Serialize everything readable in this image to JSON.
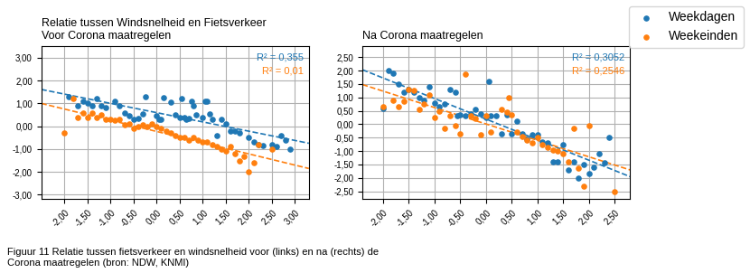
{
  "chart_data": [
    {
      "type": "scatter",
      "title": "Relatie tussen Windsnelheid en Fietsverkeer",
      "subtitle": "Voor Corona maatregelen",
      "series": [
        {
          "name": "Weekdagen",
          "x": [
            -1.9,
            -1.7,
            -1.6,
            -1.5,
            -1.4,
            -1.3,
            -1.2,
            -1.1,
            -0.9,
            -0.8,
            -0.7,
            -0.6,
            -0.5,
            -0.4,
            -0.3,
            -0.25,
            0.0,
            0.05,
            0.1,
            0.15,
            0.3,
            0.4,
            0.5,
            0.55,
            0.6,
            0.65,
            0.7,
            0.75,
            0.8,
            0.85,
            1.0,
            1.05,
            1.1,
            1.15,
            1.2,
            1.3,
            1.4,
            1.5,
            1.6,
            1.7,
            1.8,
            2.0,
            2.1,
            2.2,
            2.3,
            2.5,
            2.6,
            2.7,
            2.8,
            2.9
          ],
          "values": [
            1.3,
            0.9,
            1.1,
            1.0,
            0.9,
            1.2,
            0.9,
            0.8,
            1.1,
            0.9,
            0.6,
            0.45,
            0.3,
            0.35,
            0.55,
            1.3,
            0.45,
            0.3,
            0.3,
            1.25,
            1.05,
            0.5,
            0.4,
            1.2,
            0.4,
            0.3,
            0.35,
            1.1,
            0.9,
            0.5,
            0.4,
            1.1,
            1.1,
            0.55,
            0.3,
            -0.4,
            0.3,
            0.1,
            -0.2,
            -0.2,
            -0.3,
            -0.5,
            -0.7,
            -0.8,
            -0.85,
            -0.8,
            -0.9,
            -0.4,
            -0.6,
            -1.0
          ]
        },
        {
          "name": "Weekeinden",
          "x": [
            -2.0,
            -1.8,
            -1.7,
            -1.6,
            -1.5,
            -1.4,
            -1.3,
            -1.2,
            -1.1,
            -1.0,
            -0.9,
            -0.8,
            -0.7,
            -0.6,
            -0.5,
            -0.4,
            -0.3,
            -0.2,
            -0.1,
            0.0,
            0.1,
            0.2,
            0.3,
            0.4,
            0.5,
            0.6,
            0.7,
            0.8,
            0.9,
            1.0,
            1.1,
            1.2,
            1.3,
            1.4,
            1.5,
            1.6,
            1.7,
            1.8,
            1.9,
            2.0,
            2.1,
            2.2,
            2.5
          ],
          "values": [
            -0.3,
            1.2,
            0.4,
            0.6,
            0.4,
            0.6,
            0.4,
            0.5,
            0.3,
            0.3,
            0.25,
            0.3,
            0.05,
            0.1,
            -0.1,
            0.0,
            0.05,
            0.0,
            0.1,
            0.0,
            -0.1,
            -0.2,
            -0.3,
            -0.4,
            -0.5,
            -0.5,
            -0.6,
            -0.5,
            -0.6,
            -0.7,
            -0.7,
            -0.8,
            -0.9,
            -1.0,
            -1.1,
            -0.9,
            -1.2,
            -1.5,
            -1.3,
            -2.0,
            -1.6,
            -0.8,
            -1.0
          ]
        }
      ],
      "trend_lines": [
        {
          "series": "Weekdagen",
          "slope": -0.40664,
          "intercept": 0.5978,
          "label": "R² = 0,355"
        },
        {
          "series": "Weekeinden",
          "slope": -0.49182,
          "intercept": -0.22724,
          "label": "R² = 0,01"
        }
      ],
      "xlim": [
        -2.5,
        3.3
      ],
      "ylim": [
        -3.2,
        3.5
      ],
      "xticks": [
        {
          "value": -2.0,
          "label": "-2,00"
        },
        {
          "value": -1.5,
          "label": "-1,50"
        },
        {
          "value": -1.0,
          "label": "-1,00"
        },
        {
          "value": -0.5,
          "label": "-0,50"
        },
        {
          "value": 0.0,
          "label": "0,00"
        },
        {
          "value": 0.5,
          "label": "0,50"
        },
        {
          "value": 1.0,
          "label": "1,00"
        },
        {
          "value": 1.5,
          "label": "1,50"
        },
        {
          "value": 2.0,
          "label": "2,00"
        },
        {
          "value": 2.5,
          "label": "2,50"
        },
        {
          "value": 3.0,
          "label": "3,00"
        }
      ],
      "yticks": [
        {
          "value": -3.0,
          "label": "-3,00"
        },
        {
          "value": -2.0,
          "label": "-2,00"
        },
        {
          "value": -1.0,
          "label": "-1,00"
        },
        {
          "value": 0.0,
          "label": "0,00"
        },
        {
          "value": 1.0,
          "label": "1,00"
        },
        {
          "value": 2.0,
          "label": "2,00"
        },
        {
          "value": 3.0,
          "label": "3,00"
        }
      ],
      "grid": true
    },
    {
      "type": "scatter",
      "title": "Na Corona maatregelen",
      "series": [
        {
          "name": "Weekdagen",
          "x": [
            -2.0,
            -1.9,
            -1.8,
            -1.7,
            -1.6,
            -1.5,
            -1.4,
            -1.3,
            -1.2,
            -1.1,
            -1.0,
            -0.9,
            -0.8,
            -0.7,
            -0.6,
            -0.55,
            -0.5,
            -0.4,
            -0.3,
            -0.2,
            -0.1,
            0.0,
            0.05,
            0.1,
            0.2,
            0.3,
            0.4,
            0.5,
            0.6,
            0.7,
            0.8,
            0.9,
            1.0,
            1.1,
            1.2,
            1.3,
            1.4,
            1.5,
            1.6,
            1.7,
            1.8,
            1.9,
            2.0,
            2.1,
            2.2,
            2.3,
            2.4
          ],
          "values": [
            0.6,
            2.0,
            1.9,
            1.5,
            1.2,
            1.3,
            1.2,
            1.0,
            0.9,
            1.4,
            0.8,
            0.65,
            0.75,
            1.3,
            1.2,
            0.3,
            0.35,
            0.3,
            0.4,
            0.55,
            0.4,
            0.25,
            1.6,
            0.3,
            0.3,
            -0.35,
            0.35,
            -0.35,
            0.1,
            -0.35,
            -0.55,
            -0.4,
            -0.4,
            -0.65,
            -0.7,
            -1.4,
            -1.4,
            -0.75,
            -1.7,
            -1.4,
            -2.0,
            -1.5,
            -1.85,
            -1.6,
            -1.1,
            -1.45,
            -0.5
          ]
        },
        {
          "name": "Weekeinden",
          "x": [
            -2.0,
            -1.8,
            -1.7,
            -1.6,
            -1.5,
            -1.4,
            -1.3,
            -1.2,
            -1.1,
            -1.0,
            -0.9,
            -0.8,
            -0.7,
            -0.6,
            -0.5,
            -0.4,
            -0.3,
            -0.2,
            -0.1,
            0.0,
            0.1,
            0.3,
            0.4,
            0.45,
            0.5,
            0.6,
            0.7,
            0.8,
            0.9,
            1.0,
            1.1,
            1.2,
            1.3,
            1.4,
            1.5,
            1.6,
            1.7,
            1.8,
            1.9,
            2.0,
            2.5
          ],
          "values": [
            0.65,
            0.9,
            0.65,
            0.85,
            1.3,
            1.25,
            0.55,
            0.75,
            1.1,
            0.25,
            0.5,
            -0.15,
            0.3,
            -0.05,
            -0.35,
            1.85,
            0.3,
            0.2,
            -0.4,
            0.3,
            -0.3,
            0.55,
            0.45,
            1.0,
            0.35,
            -0.3,
            -0.45,
            -0.6,
            -0.7,
            -0.5,
            -0.75,
            -0.85,
            -0.95,
            -1.0,
            -1.1,
            -1.4,
            -0.15,
            -1.65,
            -2.3,
            -0.05,
            -2.5
          ]
        }
      ],
      "trend_lines": [
        {
          "series": "Weekdagen",
          "slope": -0.76656,
          "intercept": 0.19182,
          "label": "R² = 0,3052"
        },
        {
          "series": "Weekeinden",
          "slope": -0.6121,
          "intercept": 0.00966,
          "label": "R² = 0,2546"
        }
      ],
      "xlim": [
        -2.4,
        2.8
      ],
      "ylim": [
        -2.8,
        2.9
      ],
      "xticks": [
        {
          "value": -2.0,
          "label": "-2,00"
        },
        {
          "value": -1.5,
          "label": "-1,50"
        },
        {
          "value": -1.0,
          "label": "-1,00"
        },
        {
          "value": -0.5,
          "label": "-0,50"
        },
        {
          "value": 0.0,
          "label": "0,00"
        },
        {
          "value": 0.5,
          "label": "0,50"
        },
        {
          "value": 1.0,
          "label": "1,00"
        },
        {
          "value": 1.5,
          "label": "1,50"
        },
        {
          "value": 2.0,
          "label": "2,00"
        },
        {
          "value": 2.5,
          "label": "2,50"
        }
      ],
      "yticks": [
        {
          "value": -2.5,
          "label": "-2,50"
        },
        {
          "value": -2.0,
          "label": "-2,00"
        },
        {
          "value": -1.5,
          "label": "-1,50"
        },
        {
          "value": -1.0,
          "label": "-1,00"
        },
        {
          "value": -0.5,
          "label": "-0,50"
        },
        {
          "value": 0.0,
          "label": "0,00"
        },
        {
          "value": 0.5,
          "label": "0,50"
        },
        {
          "value": 1.0,
          "label": "1,00"
        },
        {
          "value": 1.5,
          "label": "1,50"
        },
        {
          "value": 2.0,
          "label": "2,00"
        },
        {
          "value": 2.5,
          "label": "2,50"
        }
      ],
      "grid": true,
      "legend": "upper right"
    }
  ],
  "caption": "Figuur 11 Relatie tussen fietsverkeer en windsnelheid voor (links) en na (rechts) de\nCorona maatregelen (bron: NDW, KNMI)"
}
